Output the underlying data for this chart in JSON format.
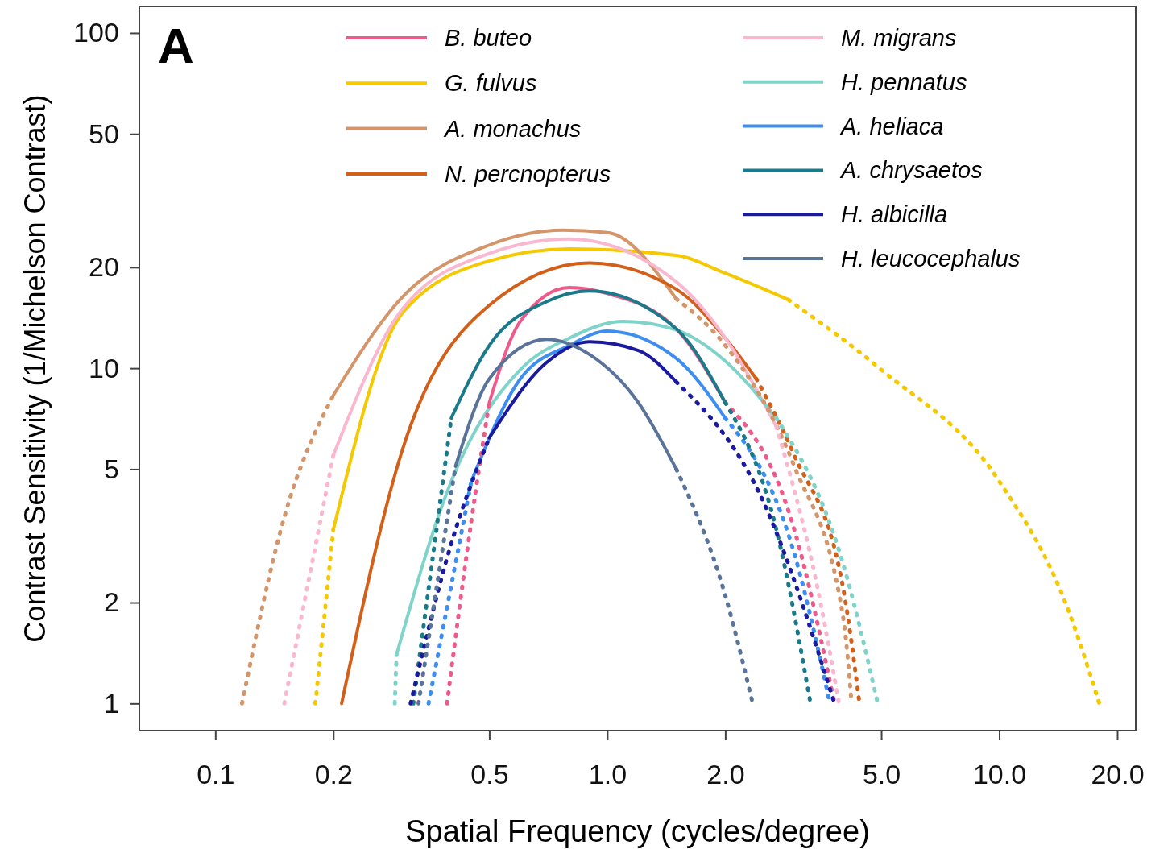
{
  "chart_data": {
    "type": "line",
    "xlabel": "Spatial Frequency (cycles/degree)",
    "ylabel": "Contrast Sensitivity (1/Michelson Contrast)",
    "annotations": [
      "A"
    ],
    "log": "xy",
    "grid": false,
    "legend": "top",
    "marker": "none",
    "xlim": [
      0.064,
      22.3
    ],
    "ylim": [
      0.83,
      120
    ],
    "xticks": [
      {
        "value": 0.1,
        "label": "0.1"
      },
      {
        "value": 0.2,
        "label": "0.2"
      },
      {
        "value": 0.5,
        "label": "0.5"
      },
      {
        "value": 1,
        "label": "1.0"
      },
      {
        "value": 2,
        "label": "2.0"
      },
      {
        "value": 5,
        "label": "5.0"
      },
      {
        "value": 10,
        "label": "10.0"
      },
      {
        "value": 20,
        "label": "20.0"
      }
    ],
    "yticks": [
      1,
      2,
      5,
      10,
      20,
      50,
      100
    ],
    "series": [
      {
        "name": "B. buteo",
        "color": "#ee5a8a",
        "line_style": "solid",
        "x": [
          0.5,
          0.6,
          0.8,
          1,
          1.5,
          2
        ],
        "values": [
          7.9,
          13.8,
          17.4,
          16.7,
          13.1,
          7.9
        ]
      },
      {
        "name": "G. fulvus",
        "color": "#f5c800",
        "line_style": "solid",
        "x": [
          0.2,
          0.3,
          0.5,
          0.8,
          1.5,
          2,
          2.9
        ],
        "values": [
          3.3,
          14.6,
          20.9,
          22.7,
          21.7,
          19.2,
          16
        ]
      },
      {
        "name": "A. monachus",
        "color": "#d4956a",
        "line_style": "solid",
        "x": [
          0.2,
          0.3,
          0.5,
          0.77,
          1,
          1.5
        ],
        "values": [
          8.3,
          16.3,
          23.3,
          25.8,
          25.4,
          16.1
        ]
      },
      {
        "name": "N. percnopterus",
        "color": "#d2601a",
        "line_style": "solid",
        "x": [
          0.21,
          0.3,
          0.5,
          0.9,
          1.5,
          2,
          2.4
        ],
        "values": [
          1,
          5.7,
          15.4,
          20.6,
          17.2,
          12.3,
          9.3
        ]
      },
      {
        "name": "M. migrans",
        "color": "#f9b8d0",
        "line_style": "solid",
        "x": [
          0.2,
          0.3,
          0.5,
          0.8,
          1.5,
          2,
          2.7
        ],
        "values": [
          5.5,
          15,
          22,
          24.3,
          18.1,
          12.3,
          6.7
        ]
      },
      {
        "name": "H. pennatus",
        "color": "#7fd3c9",
        "line_style": "solid",
        "x": [
          0.29,
          0.4,
          0.6,
          0.8,
          1.1,
          1.5,
          2,
          2.7
        ],
        "values": [
          1.4,
          4.6,
          9.9,
          12.3,
          13.8,
          13,
          10.5,
          7.1
        ]
      },
      {
        "name": "A. heliaca",
        "color": "#3d8ef0",
        "line_style": "solid",
        "x": [
          0.45,
          0.6,
          0.8,
          1,
          1.5,
          2
        ],
        "values": [
          4.6,
          9.3,
          11.7,
          12.9,
          10.7,
          7.1
        ]
      },
      {
        "name": "A. chrysaetos",
        "color": "#1a7a8a",
        "line_style": "solid",
        "x": [
          0.4,
          0.5,
          0.7,
          0.9,
          1.5,
          2
        ],
        "values": [
          7.1,
          11.7,
          15.8,
          17,
          13.1,
          7.9
        ]
      },
      {
        "name": "H. albicilla",
        "color": "#1a1aa0",
        "line_style": "solid",
        "x": [
          0.5,
          0.7,
          0.9,
          1.2,
          1.5
        ],
        "values": [
          6.2,
          10.4,
          12,
          11.3,
          9.1
        ]
      },
      {
        "name": "H. leucocephalus",
        "color": "#5a7399",
        "line_style": "solid",
        "x": [
          0.41,
          0.5,
          0.7,
          0.9,
          1.2,
          1.5
        ],
        "values": [
          5.1,
          9.3,
          12.2,
          11,
          7.9,
          5
        ]
      },
      {
        "color": "#ee5a8a",
        "line_style": "dotted",
        "x": [
          0.39,
          0.45,
          0.5,
          null,
          2,
          3,
          3.8
        ],
        "values": [
          1,
          3.5,
          7.9,
          null,
          7.9,
          3.3,
          1
        ]
      },
      {
        "color": "#f5c800",
        "line_style": "dotted",
        "x": [
          0.18,
          0.2,
          null,
          2.9,
          5,
          10,
          15,
          18
        ],
        "values": [
          1,
          3.3,
          null,
          16,
          9.9,
          4.6,
          1.9,
          1
        ]
      },
      {
        "color": "#d4956a",
        "line_style": "dotted",
        "x": [
          0.117,
          0.15,
          0.2,
          null,
          1.5,
          2,
          3,
          4,
          4.2
        ],
        "values": [
          1,
          3.6,
          8.3,
          null,
          16.1,
          11.7,
          5.1,
          1.8,
          1
        ]
      },
      {
        "color": "#d2601a",
        "line_style": "dotted",
        "x": [
          2.4,
          3,
          4,
          4.4
        ],
        "values": [
          9.3,
          5.5,
          2.2,
          1
        ]
      },
      {
        "color": "#f9b8d0",
        "line_style": "dotted",
        "x": [
          0.15,
          0.2,
          null,
          2.7,
          3.5,
          3.9
        ],
        "values": [
          1,
          5.5,
          null,
          6.7,
          2,
          1
        ]
      },
      {
        "color": "#7fd3c9",
        "line_style": "dotted",
        "x": [
          0.287,
          0.29,
          null,
          2.7,
          4,
          4.9
        ],
        "values": [
          1,
          1.4,
          null,
          7.1,
          2.6,
          1
        ]
      },
      {
        "color": "#3d8ef0",
        "line_style": "dotted",
        "x": [
          0.35,
          0.45,
          null,
          2,
          3,
          3.7
        ],
        "values": [
          1,
          4.6,
          null,
          7.1,
          2.8,
          1
        ]
      },
      {
        "color": "#1a7a8a",
        "line_style": "dotted",
        "x": [
          0.32,
          0.4,
          null,
          2,
          2.7,
          3.3
        ],
        "values": [
          1,
          7.1,
          null,
          7.9,
          3.3,
          1
        ]
      },
      {
        "color": "#1a1aa0",
        "line_style": "dotted",
        "x": [
          0.315,
          0.4,
          0.5,
          null,
          1.5,
          2.5,
          3.8
        ],
        "values": [
          1,
          3,
          6.2,
          null,
          9.1,
          4,
          1
        ]
      },
      {
        "color": "#5a7399",
        "line_style": "dotted",
        "x": [
          0.33,
          0.41,
          null,
          1.5,
          2,
          2.35
        ],
        "values": [
          1,
          5.1,
          null,
          5,
          2.1,
          1
        ]
      }
    ]
  }
}
